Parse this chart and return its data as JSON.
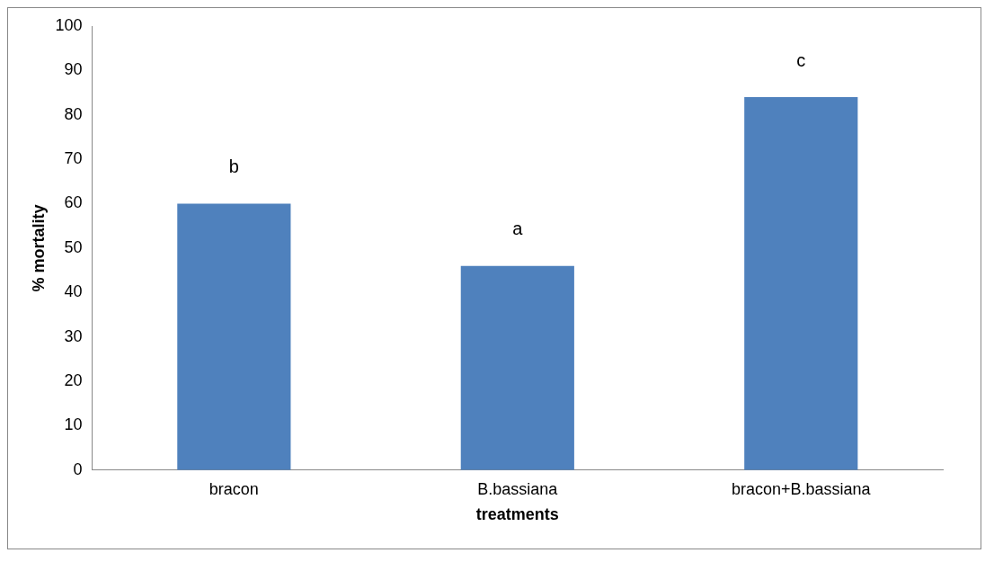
{
  "chart_data": {
    "type": "bar",
    "xlabel": "treatments",
    "ylabel": "% mortality",
    "categories": [
      "bracon",
      "B.bassiana",
      "bracon+B.bassiana"
    ],
    "values": [
      60,
      46,
      84
    ],
    "color": "#4f81bd",
    "ylim": [
      0,
      100
    ],
    "yticks": [
      0,
      10,
      20,
      30,
      40,
      50,
      60,
      70,
      80,
      90,
      100
    ],
    "grid": false,
    "annotations": [
      "b",
      "a",
      "c"
    ]
  }
}
